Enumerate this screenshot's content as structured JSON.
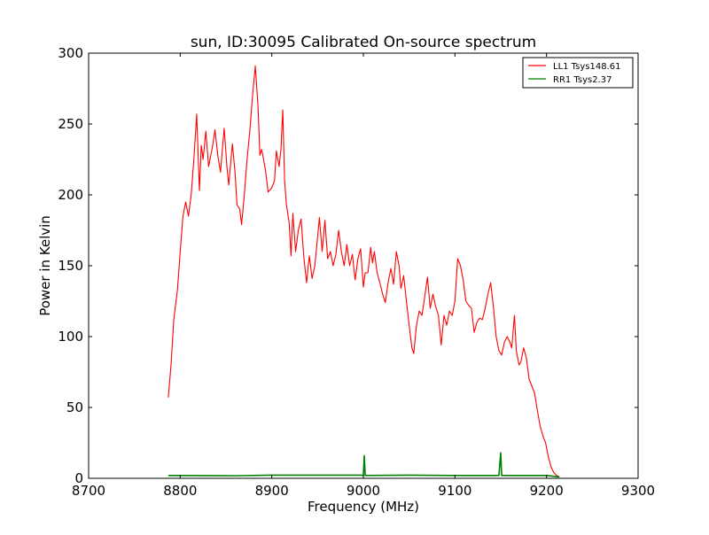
{
  "chart_data": {
    "type": "line",
    "title": "sun, ID:30095 Calibrated On-source spectrum",
    "xlabel": "Frequency (MHz)",
    "ylabel": "Power in Kelvin",
    "xlim": [
      8700,
      9300
    ],
    "ylim": [
      0,
      300
    ],
    "xticks": [
      8700,
      8800,
      8900,
      9000,
      9100,
      9200,
      9300
    ],
    "yticks": [
      0,
      50,
      100,
      150,
      200,
      250,
      300
    ],
    "grid": false,
    "legend_position": "top-right",
    "series": [
      {
        "name": "LL1 Tsys148.61",
        "color": "#ff0000",
        "points": [
          [
            8787,
            57
          ],
          [
            8790,
            80
          ],
          [
            8793,
            112
          ],
          [
            8797,
            133
          ],
          [
            8800,
            160
          ],
          [
            8803,
            185
          ],
          [
            8806,
            195
          ],
          [
            8809,
            185
          ],
          [
            8812,
            200
          ],
          [
            8815,
            226
          ],
          [
            8818,
            257
          ],
          [
            8821,
            203
          ],
          [
            8823,
            235
          ],
          [
            8825,
            225
          ],
          [
            8828,
            245
          ],
          [
            8831,
            220
          ],
          [
            8835,
            233
          ],
          [
            8838,
            246
          ],
          [
            8841,
            228
          ],
          [
            8844,
            216
          ],
          [
            8848,
            247
          ],
          [
            8851,
            220
          ],
          [
            8853,
            207
          ],
          [
            8857,
            236
          ],
          [
            8860,
            215
          ],
          [
            8862,
            193
          ],
          [
            8865,
            190
          ],
          [
            8867,
            179
          ],
          [
            8870,
            200
          ],
          [
            8873,
            225
          ],
          [
            8876,
            245
          ],
          [
            8879,
            270
          ],
          [
            8882,
            291
          ],
          [
            8885,
            262
          ],
          [
            8887,
            228
          ],
          [
            8889,
            232
          ],
          [
            8893,
            218
          ],
          [
            8896,
            202
          ],
          [
            8900,
            205
          ],
          [
            8903,
            210
          ],
          [
            8905,
            231
          ],
          [
            8908,
            220
          ],
          [
            8910,
            232
          ],
          [
            8912,
            260
          ],
          [
            8914,
            210
          ],
          [
            8916,
            193
          ],
          [
            8919,
            180
          ],
          [
            8921,
            157
          ],
          [
            8923,
            187
          ],
          [
            8926,
            160
          ],
          [
            8929,
            175
          ],
          [
            8932,
            183
          ],
          [
            8935,
            156
          ],
          [
            8938,
            138
          ],
          [
            8941,
            157
          ],
          [
            8944,
            141
          ],
          [
            8947,
            150
          ],
          [
            8950,
            170
          ],
          [
            8952,
            184
          ],
          [
            8955,
            160
          ],
          [
            8958,
            182
          ],
          [
            8961,
            155
          ],
          [
            8964,
            160
          ],
          [
            8967,
            150
          ],
          [
            8970,
            158
          ],
          [
            8973,
            175
          ],
          [
            8976,
            160
          ],
          [
            8979,
            150
          ],
          [
            8982,
            165
          ],
          [
            8985,
            150
          ],
          [
            8988,
            158
          ],
          [
            8991,
            140
          ],
          [
            8994,
            155
          ],
          [
            8997,
            162
          ],
          [
            9000,
            135
          ],
          [
            9002,
            145
          ],
          [
            9005,
            145
          ],
          [
            9008,
            163
          ],
          [
            9010,
            152
          ],
          [
            9012,
            160
          ],
          [
            9015,
            145
          ],
          [
            9018,
            138
          ],
          [
            9021,
            130
          ],
          [
            9024,
            124
          ],
          [
            9027,
            138
          ],
          [
            9030,
            148
          ],
          [
            9033,
            137
          ],
          [
            9036,
            160
          ],
          [
            9039,
            150
          ],
          [
            9041,
            134
          ],
          [
            9044,
            143
          ],
          [
            9047,
            125
          ],
          [
            9050,
            108
          ],
          [
            9053,
            92
          ],
          [
            9055,
            88
          ],
          [
            9058,
            108
          ],
          [
            9061,
            118
          ],
          [
            9064,
            115
          ],
          [
            9067,
            128
          ],
          [
            9070,
            142
          ],
          [
            9073,
            120
          ],
          [
            9076,
            130
          ],
          [
            9079,
            121
          ],
          [
            9082,
            115
          ],
          [
            9085,
            94
          ],
          [
            9088,
            115
          ],
          [
            9091,
            108
          ],
          [
            9094,
            118
          ],
          [
            9097,
            115
          ],
          [
            9100,
            125
          ],
          [
            9103,
            155
          ],
          [
            9106,
            150
          ],
          [
            9109,
            140
          ],
          [
            9112,
            125
          ],
          [
            9115,
            122
          ],
          [
            9118,
            120
          ],
          [
            9121,
            103
          ],
          [
            9124,
            110
          ],
          [
            9127,
            113
          ],
          [
            9130,
            112
          ],
          [
            9133,
            120
          ],
          [
            9136,
            130
          ],
          [
            9139,
            138
          ],
          [
            9142,
            121
          ],
          [
            9145,
            100
          ],
          [
            9148,
            90
          ],
          [
            9151,
            87
          ],
          [
            9154,
            96
          ],
          [
            9157,
            100
          ],
          [
            9160,
            96
          ],
          [
            9162,
            92
          ],
          [
            9165,
            115
          ],
          [
            9167,
            90
          ],
          [
            9170,
            80
          ],
          [
            9172,
            82
          ],
          [
            9175,
            92
          ],
          [
            9178,
            85
          ],
          [
            9181,
            70
          ],
          [
            9184,
            65
          ],
          [
            9187,
            60
          ],
          [
            9190,
            48
          ],
          [
            9193,
            37
          ],
          [
            9196,
            30
          ],
          [
            9199,
            25
          ],
          [
            9202,
            15
          ],
          [
            9205,
            8
          ],
          [
            9208,
            4
          ],
          [
            9211,
            2
          ],
          [
            9214,
            1
          ]
        ]
      },
      {
        "name": "RR1 Tsys2.37",
        "color": "#008000",
        "points": [
          [
            8787,
            2
          ],
          [
            8860,
            1.8
          ],
          [
            8900,
            2.2
          ],
          [
            8998,
            2.2
          ],
          [
            9000,
            2
          ],
          [
            9001,
            16
          ],
          [
            9002,
            2
          ],
          [
            9050,
            2.2
          ],
          [
            9100,
            2
          ],
          [
            9148,
            2
          ],
          [
            9150,
            18
          ],
          [
            9151,
            2
          ],
          [
            9200,
            2
          ],
          [
            9214,
            1
          ]
        ]
      }
    ]
  }
}
